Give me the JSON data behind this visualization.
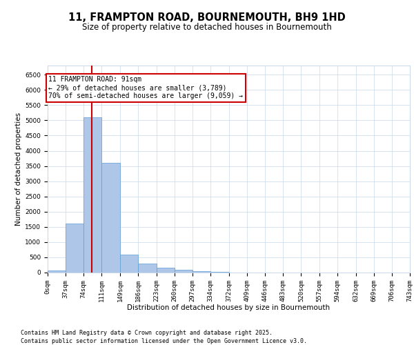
{
  "title_line1": "11, FRAMPTON ROAD, BOURNEMOUTH, BH9 1HD",
  "title_line2": "Size of property relative to detached houses in Bournemouth",
  "xlabel": "Distribution of detached houses by size in Bournemouth",
  "ylabel": "Number of detached properties",
  "bar_color": "#aec6e8",
  "bar_edge_color": "#5b9bd5",
  "vline_color": "#cc0000",
  "vline_x": 91,
  "annotation_text": "11 FRAMPTON ROAD: 91sqm\n← 29% of detached houses are smaller (3,789)\n70% of semi-detached houses are larger (9,059) →",
  "annotation_box_edgecolor": "#cc0000",
  "bins": [
    0,
    37,
    74,
    111,
    149,
    186,
    223,
    260,
    297,
    334,
    372,
    409,
    446,
    483,
    520,
    557,
    594,
    632,
    669,
    706,
    743
  ],
  "bin_labels": [
    "0sqm",
    "37sqm",
    "74sqm",
    "111sqm",
    "149sqm",
    "186sqm",
    "223sqm",
    "260sqm",
    "297sqm",
    "334sqm",
    "372sqm",
    "409sqm",
    "446sqm",
    "483sqm",
    "520sqm",
    "557sqm",
    "594sqm",
    "632sqm",
    "669sqm",
    "706sqm",
    "743sqm"
  ],
  "bar_heights": [
    75,
    1600,
    5100,
    3600,
    600,
    290,
    150,
    100,
    50,
    20,
    8,
    3,
    1,
    0,
    0,
    0,
    0,
    0,
    0,
    0
  ],
  "ylim_max": 6800,
  "yticks": [
    0,
    500,
    1000,
    1500,
    2000,
    2500,
    3000,
    3500,
    4000,
    4500,
    5000,
    5500,
    6000,
    6500
  ],
  "background_color": "#ffffff",
  "grid_color": "#c8d8eb",
  "footer_text": "Contains HM Land Registry data © Crown copyright and database right 2025.\nContains public sector information licensed under the Open Government Licence v3.0.",
  "title_fontsize": 10.5,
  "subtitle_fontsize": 8.5,
  "label_fontsize": 7.5,
  "tick_fontsize": 6.5,
  "footer_fontsize": 6.0,
  "annot_fontsize": 7.0
}
